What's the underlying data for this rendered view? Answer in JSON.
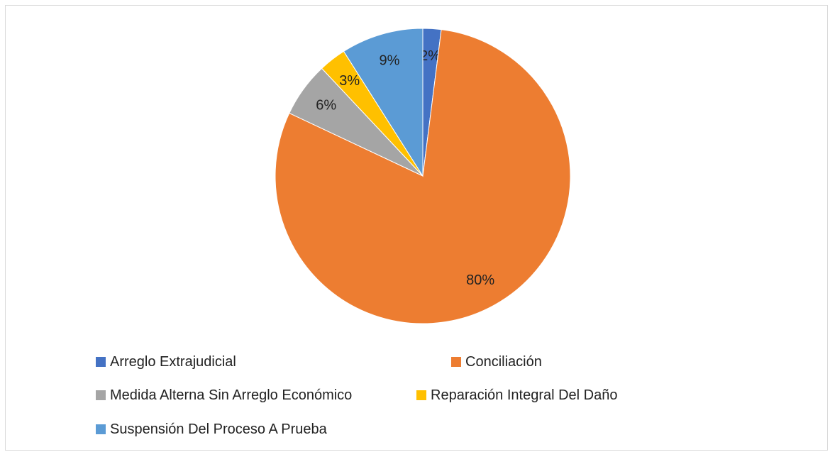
{
  "chart_data": {
    "type": "pie",
    "categories": [
      "Arreglo Extrajudicial",
      "Conciliación",
      "Medida Alterna Sin Arreglo Económico",
      "Reparación Integral Del Daño",
      "Suspensión Del Proceso A Prueba"
    ],
    "values": [
      2,
      80,
      6,
      3,
      9
    ],
    "value_labels": [
      "2%",
      "80%",
      "6%",
      "3%",
      "9%"
    ],
    "colors": [
      "#4472c4",
      "#ed7d31",
      "#a5a5a5",
      "#ffc000",
      "#5b9bd5"
    ],
    "legend": "bottom"
  }
}
